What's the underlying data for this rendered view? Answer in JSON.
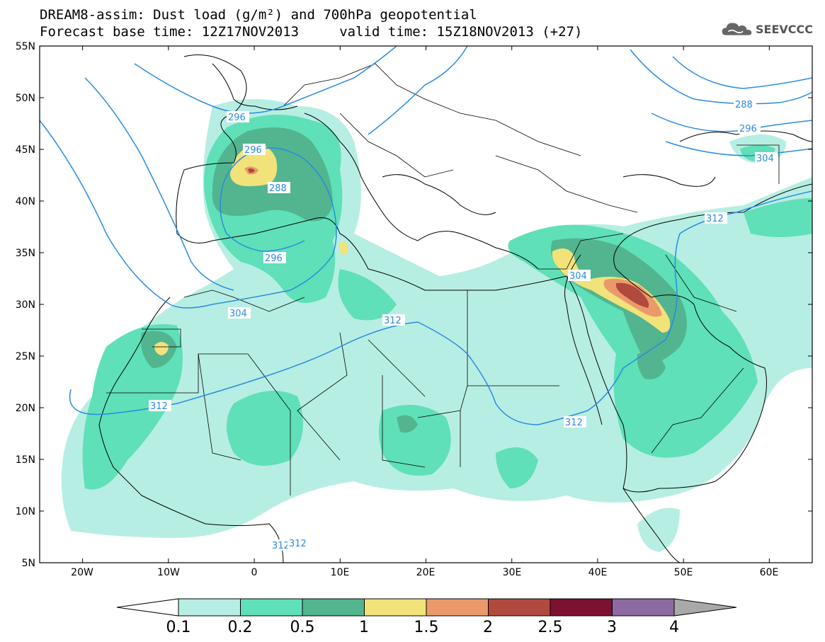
{
  "header": {
    "title_line1": "DREAM8-assim: Dust load (g/m²) and 700hPa geopotential",
    "title_line2": "Forecast base time: 12Z17NOV2013     valid time: 15Z18NOV2013 (+27)",
    "logo_text": "SEEVCCC",
    "logo_icon": "cloud-icon"
  },
  "map": {
    "lon_range": [
      -25,
      65
    ],
    "lat_range": [
      5,
      55
    ],
    "lat_ticks": [
      "55N",
      "50N",
      "45N",
      "40N",
      "35N",
      "30N",
      "25N",
      "20N",
      "15N",
      "10N",
      "5N"
    ],
    "lon_ticks": [
      "20W",
      "10W",
      "0",
      "10E",
      "20E",
      "30E",
      "40E",
      "50E",
      "60E"
    ],
    "geopotential_labels": [
      "296",
      "296",
      "288",
      "296",
      "304",
      "312",
      "312",
      "312",
      "304",
      "312",
      "288",
      "296",
      "304",
      "312",
      "312"
    ],
    "colors": {
      "contour": "#2a8be0",
      "c01": "#b7eee3",
      "c02": "#5fe0b8",
      "c05": "#52b58f",
      "c1": "#f2e27a",
      "c15": "#ea9a6a",
      "c2": "#b04a3e",
      "c25": "#7d1230",
      "c3": "#8d6aa4",
      "c4": "#a9a9a9"
    }
  },
  "colorbar": {
    "labels": [
      "0.1",
      "0.2",
      "0.5",
      "1",
      "1.5",
      "2",
      "2.5",
      "3",
      "4"
    ],
    "colors": [
      "#b7eee3",
      "#5fe0b8",
      "#52b58f",
      "#f2e27a",
      "#ea9a6a",
      "#b04a3e",
      "#7d1230",
      "#8d6aa4"
    ]
  }
}
